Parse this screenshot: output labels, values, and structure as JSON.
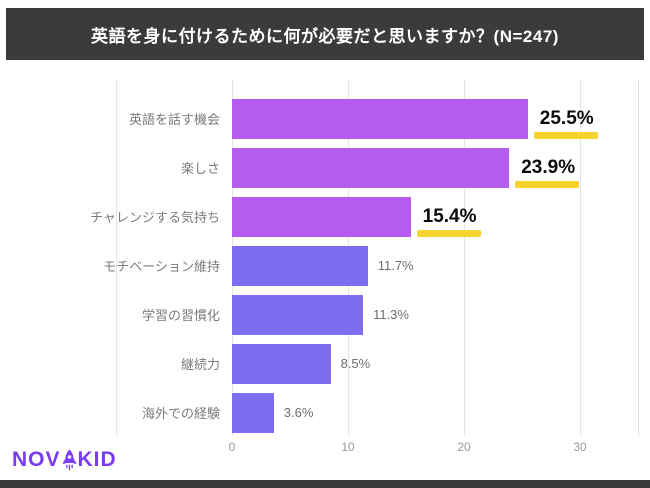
{
  "header": {
    "title": "英語を身に付けるために何が必要だと思いますか？(N=247)"
  },
  "chart_data": {
    "type": "bar",
    "orientation": "horizontal",
    "title": "英語を身に付けるために何が必要だと思いますか？(N=247)",
    "categories": [
      "英語を話す機会",
      "楽しさ",
      "チャレンジする気持ち",
      "モチベーション維持",
      "学習の習慣化",
      "継続力",
      "海外での経験"
    ],
    "values": [
      25.5,
      23.9,
      15.4,
      11.7,
      11.3,
      8.5,
      3.6
    ],
    "value_labels": [
      "25.5%",
      "23.9%",
      "15.4%",
      "11.7%",
      "11.3%",
      "8.5%",
      "3.6%"
    ],
    "highlighted": [
      true,
      true,
      true,
      false,
      false,
      false,
      false
    ],
    "x_ticks": [
      "0",
      "10",
      "20",
      "30"
    ],
    "x_tick_values": [
      0,
      10,
      20,
      30
    ],
    "xlim": [
      0,
      35
    ],
    "grid": "vertical",
    "legend": "none"
  },
  "logo": {
    "text": "NOVAKID",
    "text_before": "NOV",
    "text_after": "KID",
    "icon": "rocket-icon"
  },
  "colors": {
    "header_bg": "#3b3b3b",
    "bar_highlight": "#b55cf0",
    "bar_normal": "#7e6cf2",
    "underline_yellow": "#f6d32d",
    "logo_purple": "#7a3bf2",
    "label_gray": "#7b7b7b"
  }
}
